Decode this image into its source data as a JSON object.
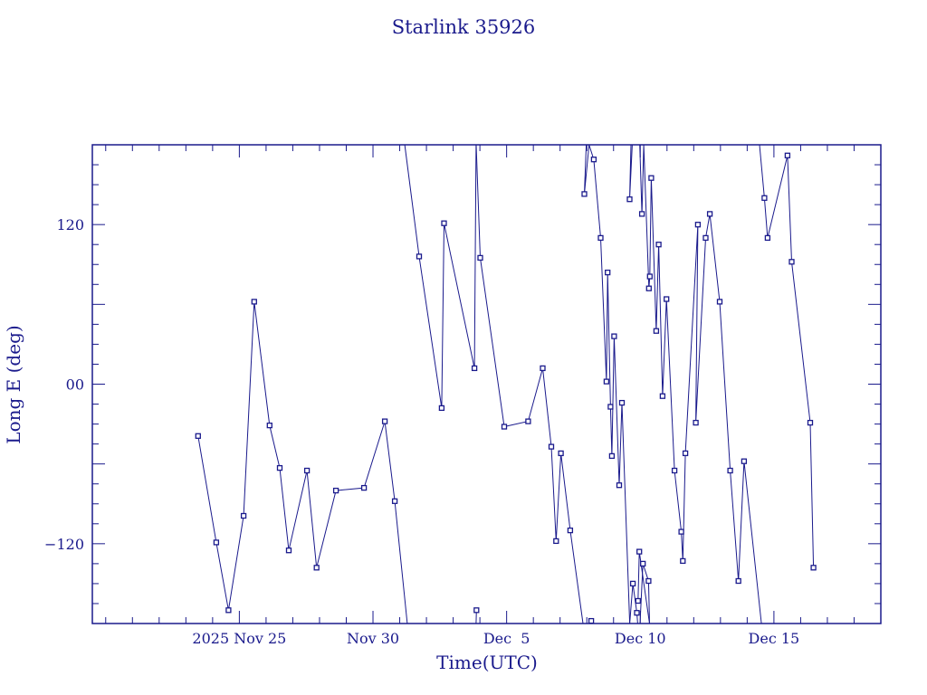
{
  "chart_data": {
    "type": "line",
    "title": "Starlink 35926",
    "xlabel": "Time(UTC)",
    "ylabel": "Long E (deg)",
    "xlim": [
      "2025-11-19T12:00",
      "2025-12-19T00:00"
    ],
    "ylim": [
      -180,
      180
    ],
    "x_ticks": [
      {
        "date": "2025-11-25",
        "label": "2025 Nov 25"
      },
      {
        "date": "2025-11-30",
        "label": "Nov 30"
      },
      {
        "date": "2025-12-05",
        "label": "Dec  5"
      },
      {
        "date": "2025-12-10",
        "label": "Dec 10"
      },
      {
        "date": "2025-12-15",
        "label": "Dec 15"
      }
    ],
    "y_ticks": [
      {
        "value": 120,
        "label": "120"
      },
      {
        "value": 0,
        "label": "00"
      },
      {
        "value": -120,
        "label": "−120"
      }
    ],
    "color": "#1a1a8c",
    "series": [
      {
        "points": [
          [
            "2025-11-23T10:58",
            -39
          ],
          [
            "2025-11-24T03:19",
            -119
          ],
          [
            "2025-11-24T14:13",
            -170
          ],
          [
            "2025-11-25T03:49",
            -99
          ],
          [
            "2025-11-25T13:20",
            62
          ],
          [
            "2025-11-26T03:09",
            -31
          ],
          [
            "2025-11-26T12:14",
            -63
          ],
          [
            "2025-11-26T20:22",
            -125
          ],
          [
            "2025-11-27T12:43",
            -65
          ],
          [
            "2025-11-27T21:22",
            -138
          ],
          [
            "2025-11-28T14:45",
            -80
          ],
          [
            "2025-11-29T15:58",
            -78
          ],
          [
            "2025-11-30T10:40",
            -28
          ],
          [
            "2025-11-30T19:33",
            -88
          ],
          [
            "2025-12-01T06:48",
            -180
          ]
        ]
      },
      {
        "points": [
          [
            "2025-12-01T04:33",
            180
          ],
          [
            "2025-12-01T17:27",
            96
          ],
          [
            "2025-12-02T13:43",
            -18
          ],
          [
            "2025-12-02T15:47",
            121
          ],
          [
            "2025-12-03T19:05",
            12
          ],
          [
            "2025-12-03T20:32",
            180
          ]
        ]
      },
      {
        "points": [
          [
            "2025-12-03T20:32",
            -180
          ],
          [
            "2025-12-03T20:55",
            -170
          ]
        ]
      },
      {
        "points": [
          [
            "2025-12-03T20:39",
            180
          ],
          [
            "2025-12-04T00:20",
            95
          ],
          [
            "2025-12-04T21:50",
            -32
          ],
          [
            "2025-12-05T19:17",
            -28
          ],
          [
            "2025-12-06T08:22",
            12
          ],
          [
            "2025-12-06T16:08",
            -47
          ],
          [
            "2025-12-06T20:24",
            -118
          ],
          [
            "2025-12-07T00:42",
            -52
          ],
          [
            "2025-12-07T09:06",
            -110
          ],
          [
            "2025-12-07T20:32",
            -180
          ]
        ]
      },
      {
        "points": [
          [
            "2025-12-08T04:00",
            -178
          ],
          [
            "2025-12-08T04:53",
            -180
          ]
        ]
      },
      {
        "points": [
          [
            "2025-12-07T23:32",
            180
          ],
          [
            "2025-12-07T21:45",
            143
          ],
          [
            "2025-12-08T02:01",
            180
          ],
          [
            "2025-12-08T06:16",
            169
          ],
          [
            "2025-12-08T12:24",
            110
          ],
          [
            "2025-12-08T17:36",
            2
          ],
          [
            "2025-12-08T18:39",
            84
          ],
          [
            "2025-12-08T21:18",
            -17
          ],
          [
            "2025-12-08T22:28",
            -54
          ],
          [
            "2025-12-09T00:31",
            36
          ],
          [
            "2025-12-09T05:03",
            -76
          ],
          [
            "2025-12-09T07:32",
            -14
          ],
          [
            "2025-12-09T14:30",
            -180
          ]
        ]
      },
      {
        "points": [
          [
            "2025-12-09T14:30",
            -180
          ],
          [
            "2025-12-09T17:20",
            -150
          ],
          [
            "2025-12-09T20:55",
            -172
          ],
          [
            "2025-12-09T21:40",
            -180
          ]
        ]
      },
      {
        "points": [
          [
            "2025-12-09T22:00",
            -163
          ],
          [
            "2025-12-09T23:10",
            -126
          ],
          [
            "2025-12-10T08:17",
            -180
          ]
        ]
      },
      {
        "points": [
          [
            "2025-12-09T23:47",
            -180
          ],
          [
            "2025-12-10T02:23",
            -135
          ],
          [
            "2025-12-10T07:27",
            -148
          ],
          [
            "2025-12-10T08:17",
            -180
          ]
        ]
      },
      {
        "points": [
          [
            "2025-12-09T15:38",
            180
          ],
          [
            "2025-12-09T14:28",
            139
          ],
          [
            "2025-12-09T16:49",
            180
          ]
        ]
      },
      {
        "points": [
          [
            "2025-12-09T23:30",
            180
          ],
          [
            "2025-12-10T01:27",
            128
          ],
          [
            "2025-12-10T03:07",
            180
          ],
          [
            "2025-12-10T07:46",
            72
          ],
          [
            "2025-12-10T08:35",
            81
          ],
          [
            "2025-12-10T09:52",
            155
          ],
          [
            "2025-12-10T14:21",
            40
          ],
          [
            "2025-12-10T16:32",
            105
          ],
          [
            "2025-12-10T20:02",
            -9
          ],
          [
            "2025-12-10T23:30",
            64
          ],
          [
            "2025-12-11T06:45",
            -65
          ],
          [
            "2025-12-11T12:53",
            -111
          ],
          [
            "2025-12-11T14:16",
            -133
          ],
          [
            "2025-12-11T16:30",
            -52
          ],
          [
            "2025-12-12T03:45",
            120
          ],
          [
            "2025-12-12T01:53",
            -29
          ],
          [
            "2025-12-12T10:41",
            110
          ],
          [
            "2025-12-12T14:25",
            128
          ],
          [
            "2025-12-12T23:17",
            62
          ],
          [
            "2025-12-13T08:46",
            -65
          ],
          [
            "2025-12-13T16:08",
            -148
          ],
          [
            "2025-12-13T21:11",
            -58
          ],
          [
            "2025-12-14T12:47",
            -180
          ]
        ]
      },
      {
        "points": [
          [
            "2025-12-14T11:04",
            180
          ],
          [
            "2025-12-14T15:27",
            140
          ],
          [
            "2025-12-14T18:20",
            110
          ],
          [
            "2025-12-15T12:13",
            172
          ],
          [
            "2025-12-15T15:55",
            92
          ],
          [
            "2025-12-16T08:34",
            -29
          ],
          [
            "2025-12-16T11:32",
            -138
          ]
        ]
      }
    ]
  }
}
